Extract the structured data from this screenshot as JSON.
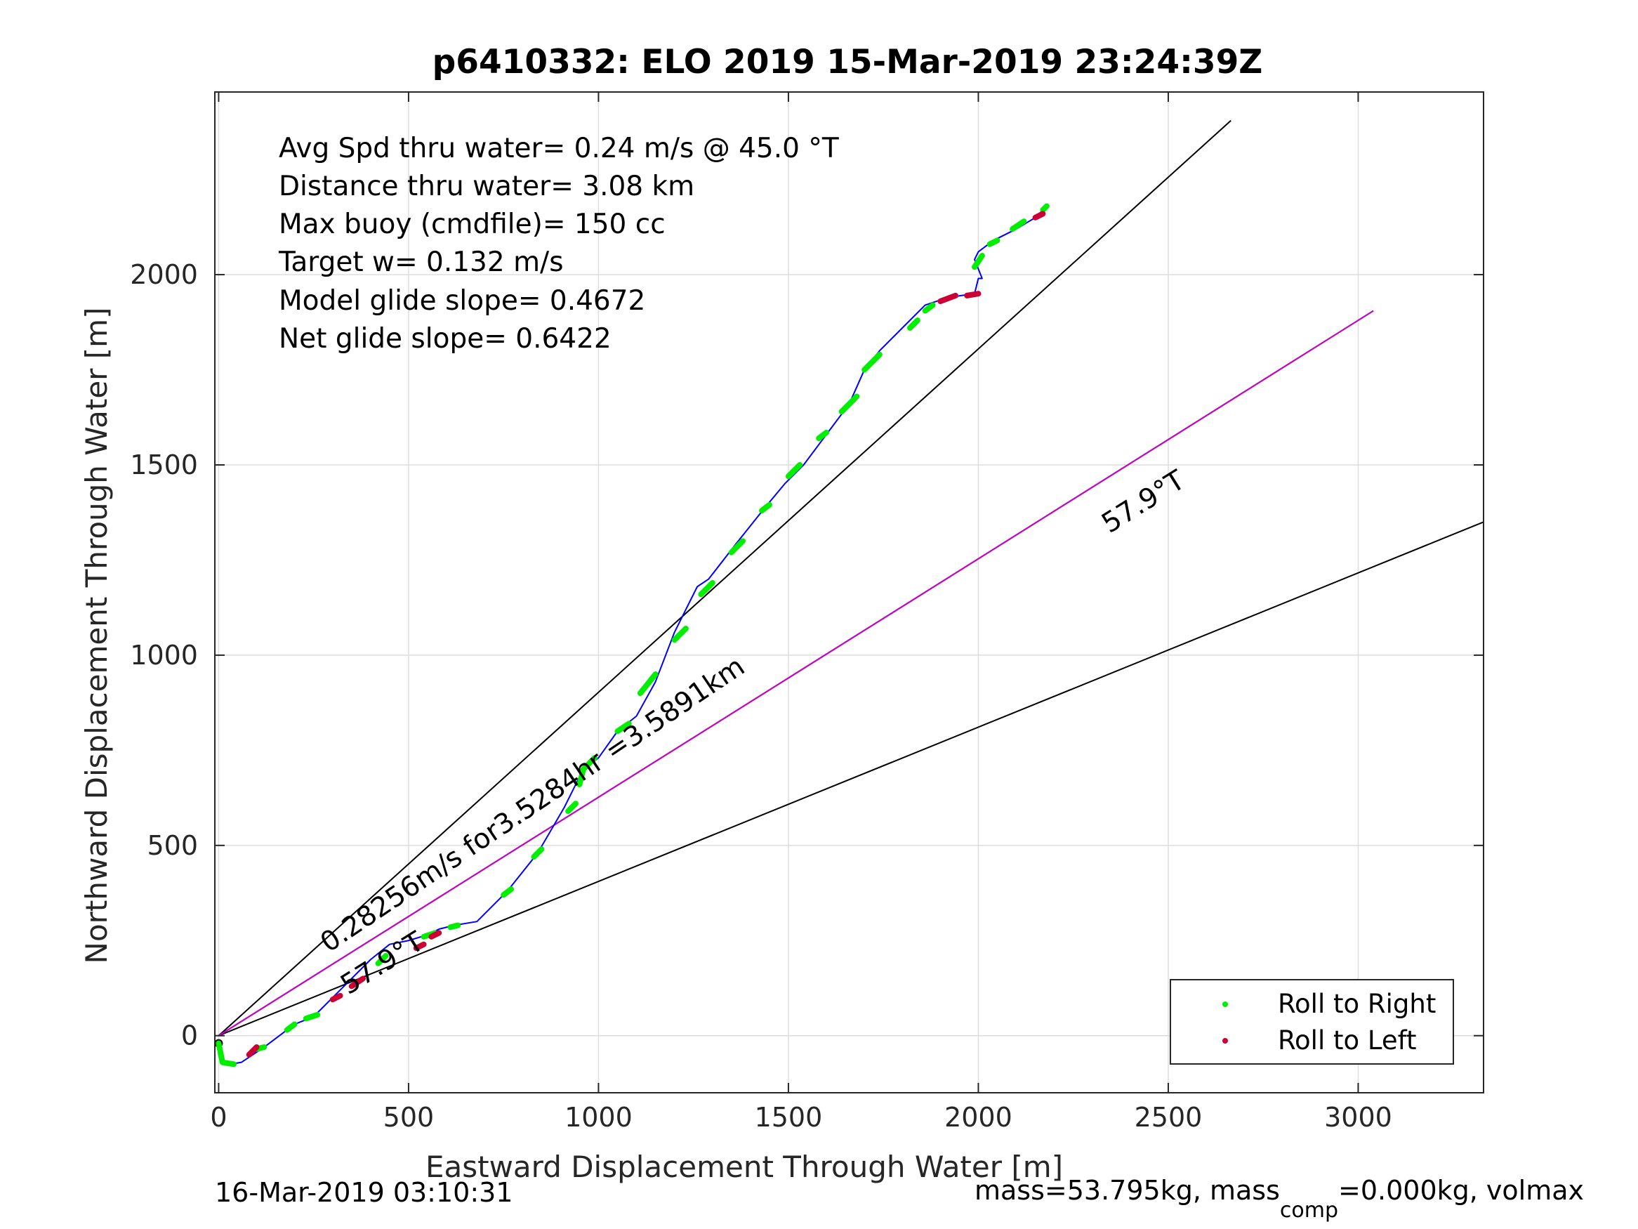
{
  "chart_data": {
    "type": "scatter",
    "title": "p6410332: ELO 2019 15-Mar-2019 23:24:39Z",
    "xlabel": "Eastward Displacement Through Water [m]",
    "ylabel": "Northward Displacement Through Water [m]",
    "xlim": [
      -10,
      3330
    ],
    "ylim": [
      -150,
      2480
    ],
    "xticks": [
      0,
      500,
      1000,
      1500,
      2000,
      2500,
      3000
    ],
    "yticks": [
      0,
      500,
      1000,
      1500,
      2000
    ],
    "grid": true,
    "legend_position": "bottom-right",
    "colors": {
      "track": "#0000ff",
      "roll_right": "#00ee00",
      "roll_left": "#cc0033",
      "mean_direction": "#cc00cc",
      "reference_lines": "#000000"
    },
    "annotations": [
      "Avg Spd thru water=  0.24 m/s @  45.0 °T",
      "Distance thru water=  3.08 km",
      "Max buoy (cmdfile)= 150 cc",
      "Target w= 0.132 m/s",
      "Model glide slope= 0.4672",
      "Net glide slope= 0.6422"
    ],
    "rotated_labels": {
      "current_label": "0.28256m/s for3.5284hr =3.5891km",
      "heading_label_near": "57.9°T",
      "heading_label_far": "57.9°T"
    },
    "legend": [
      {
        "label": "Roll to Right",
        "color": "#00ee00"
      },
      {
        "label": "Roll to Left",
        "color": "#cc0033"
      }
    ],
    "reference_lines": [
      {
        "name": "",
        "x": [
          0,
          2665
        ],
        "y": [
          0,
          2405
        ]
      },
      {
        "name": "",
        "x": [
          0,
          3040
        ],
        "y": [
          0,
          1905
        ]
      },
      {
        "name": "",
        "x": [
          0,
          3330
        ],
        "y": [
          0,
          1350
        ]
      }
    ],
    "mean_direction_line": {
      "x": [
        0,
        3040
      ],
      "y": [
        0,
        1905
      ]
    },
    "track": {
      "x": [
        0,
        0,
        10,
        30,
        60,
        90,
        120,
        160,
        200,
        250,
        300,
        350,
        400,
        450,
        500,
        550,
        580,
        620,
        680,
        760,
        840,
        910,
        960,
        1000,
        1050,
        1100,
        1150,
        1200,
        1260,
        1290,
        1360,
        1440,
        1490,
        1540,
        1600,
        1660,
        1700,
        1740,
        1810,
        1860,
        1920,
        1990,
        2000,
        2010,
        1990,
        2000,
        2040,
        2100,
        2150,
        2180
      ],
      "y": [
        -20,
        -50,
        -70,
        -75,
        -70,
        -50,
        -30,
        0,
        30,
        50,
        100,
        150,
        200,
        240,
        250,
        265,
        280,
        290,
        300,
        380,
        480,
        600,
        700,
        730,
        800,
        840,
        930,
        1060,
        1180,
        1200,
        1290,
        1390,
        1450,
        1500,
        1580,
        1660,
        1750,
        1800,
        1870,
        1920,
        1940,
        1950,
        1990,
        1990,
        2040,
        2060,
        2090,
        2120,
        2150,
        2180
      ]
    },
    "roll_right_segments": [
      [
        [
          0,
          -20
        ],
        [
          10,
          -70
        ],
        [
          40,
          -75
        ]
      ],
      [
        [
          100,
          -35
        ],
        [
          120,
          -30
        ]
      ],
      [
        [
          180,
          15
        ],
        [
          200,
          30
        ]
      ],
      [
        [
          230,
          45
        ],
        [
          260,
          55
        ]
      ],
      [
        [
          420,
          190
        ],
        [
          440,
          210
        ]
      ],
      [
        [
          540,
          260
        ],
        [
          570,
          270
        ]
      ],
      [
        [
          610,
          285
        ],
        [
          630,
          290
        ]
      ],
      [
        [
          750,
          370
        ],
        [
          770,
          385
        ]
      ],
      [
        [
          830,
          470
        ],
        [
          850,
          490
        ]
      ],
      [
        [
          920,
          590
        ],
        [
          940,
          610
        ]
      ],
      [
        [
          950,
          660
        ],
        [
          960,
          700
        ],
        [
          990,
          730
        ]
      ],
      [
        [
          1050,
          800
        ],
        [
          1080,
          820
        ]
      ],
      [
        [
          1110,
          900
        ],
        [
          1150,
          950
        ]
      ],
      [
        [
          1200,
          1040
        ],
        [
          1230,
          1070
        ]
      ],
      [
        [
          1270,
          1160
        ],
        [
          1300,
          1190
        ]
      ],
      [
        [
          1350,
          1270
        ],
        [
          1380,
          1300
        ]
      ],
      [
        [
          1430,
          1380
        ],
        [
          1450,
          1395
        ]
      ],
      [
        [
          1500,
          1470
        ],
        [
          1530,
          1500
        ]
      ],
      [
        [
          1580,
          1570
        ],
        [
          1600,
          1585
        ]
      ],
      [
        [
          1640,
          1640
        ],
        [
          1680,
          1680
        ]
      ],
      [
        [
          1700,
          1750
        ],
        [
          1740,
          1790
        ]
      ],
      [
        [
          1820,
          1860
        ],
        [
          1840,
          1880
        ]
      ],
      [
        [
          1860,
          1905
        ],
        [
          1880,
          1920
        ]
      ],
      [
        [
          1990,
          2020
        ],
        [
          2010,
          2050
        ]
      ],
      [
        [
          2030,
          2080
        ],
        [
          2050,
          2090
        ]
      ],
      [
        [
          2090,
          2120
        ],
        [
          2120,
          2140
        ]
      ],
      [
        [
          2170,
          2170
        ],
        [
          2180,
          2180
        ]
      ]
    ],
    "roll_left_segments": [
      [
        [
          80,
          -50
        ],
        [
          100,
          -30
        ]
      ],
      [
        [
          300,
          95
        ],
        [
          320,
          105
        ]
      ],
      [
        [
          350,
          130
        ],
        [
          380,
          150
        ]
      ],
      [
        [
          520,
          230
        ],
        [
          540,
          240
        ]
      ],
      [
        [
          560,
          260
        ],
        [
          580,
          270
        ]
      ],
      [
        [
          1900,
          1930
        ],
        [
          1940,
          1945
        ]
      ],
      [
        [
          1970,
          1945
        ],
        [
          2000,
          1950
        ]
      ],
      [
        [
          2150,
          2150
        ],
        [
          2170,
          2160
        ]
      ]
    ],
    "footer_left": "16-Mar-2019 03:10:31",
    "footer_right_parts": [
      "mass=53.795kg, mass",
      "comp",
      "=0.000kg, volmax"
    ]
  }
}
